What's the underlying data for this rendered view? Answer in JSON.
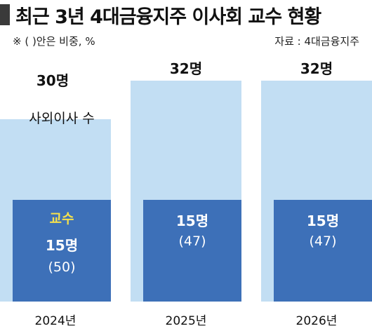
{
  "header": {
    "title": "최근 3년 4대금융지주 이사회 교수 현황",
    "note": "※ ( )안은 비중, %",
    "source": "자료 : 4대금융지주"
  },
  "legend": {
    "total_label": "사외이사 수",
    "professor_label": "교수"
  },
  "colors": {
    "total": "#c2def3",
    "professor": "#3d70b8",
    "professor_label": "#f4e04d",
    "text_dark": "#111111",
    "text_light": "#ffffff"
  },
  "chart_data": {
    "type": "bar",
    "categories": [
      "2024년",
      "2025년",
      "2026년"
    ],
    "series": [
      {
        "name": "사외이사 수",
        "values": [
          30,
          32,
          32
        ],
        "labels": [
          "30명",
          "32명",
          "32명"
        ]
      },
      {
        "name": "교수",
        "values": [
          15,
          15,
          15
        ],
        "labels": [
          "15명",
          "15명",
          "15명"
        ],
        "shares": [
          "(50)",
          "(47)",
          "(47)"
        ]
      }
    ],
    "title": "최근 3년 4대금융지주 이사회 교수 현황",
    "xlabel": "",
    "ylabel": ""
  }
}
